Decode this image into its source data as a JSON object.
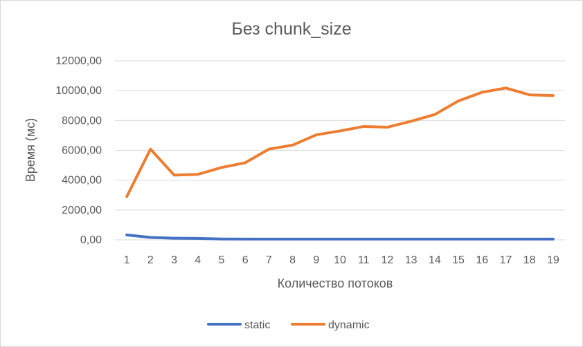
{
  "chart_data": {
    "type": "line",
    "title": "Без chunk_size",
    "xlabel": "Количество потоков",
    "ylabel": "Время (мс)",
    "categories": [
      "1",
      "2",
      "3",
      "4",
      "5",
      "6",
      "7",
      "8",
      "9",
      "10",
      "11",
      "12",
      "13",
      "14",
      "15",
      "16",
      "17",
      "18",
      "19"
    ],
    "ylim": [
      0,
      12000
    ],
    "yticks": [
      0,
      2000,
      4000,
      6000,
      8000,
      10000,
      12000
    ],
    "ytick_labels": [
      "0,00",
      "2000,00",
      "4000,00",
      "6000,00",
      "8000,00",
      "10000,00",
      "12000,00"
    ],
    "grid": true,
    "legend_position": "bottom",
    "series": [
      {
        "name": "static",
        "color": "#4472C4",
        "values": [
          330,
          160,
          110,
          100,
          60,
          50,
          50,
          50,
          50,
          50,
          50,
          50,
          50,
          50,
          50,
          50,
          50,
          50,
          50
        ]
      },
      {
        "name": "dynamic",
        "color": "#ED7D31",
        "values": [
          2900,
          6080,
          4340,
          4390,
          4850,
          5170,
          6080,
          6350,
          7040,
          7300,
          7600,
          7550,
          7950,
          8400,
          9310,
          9890,
          10180,
          9720,
          9680
        ]
      }
    ]
  }
}
